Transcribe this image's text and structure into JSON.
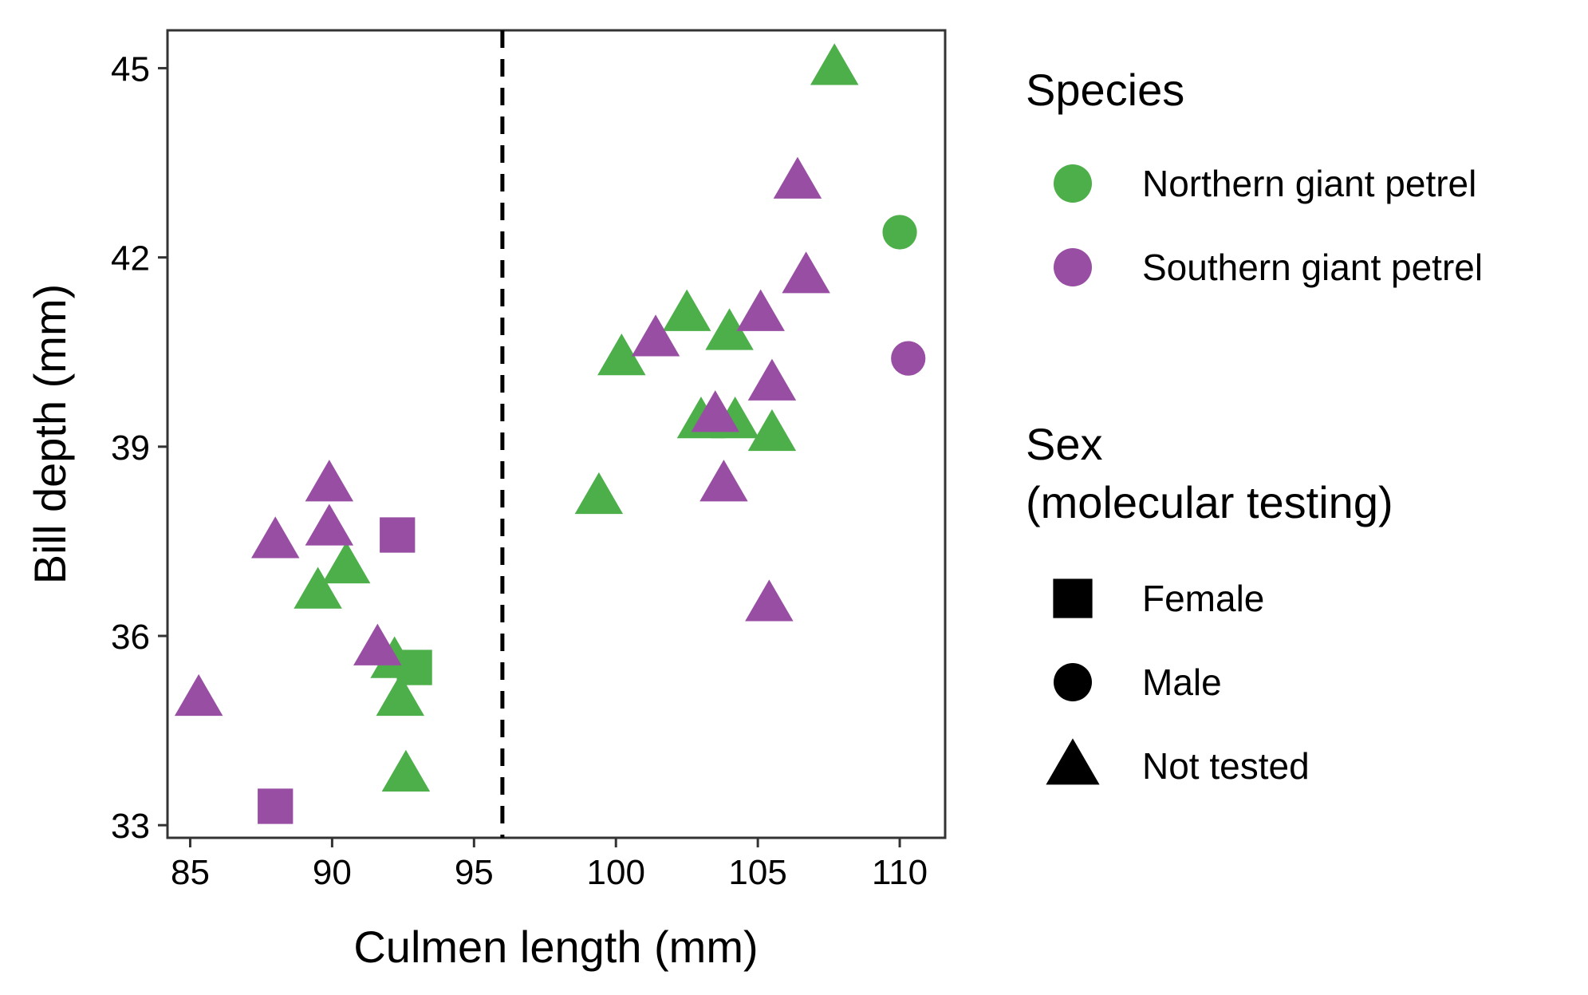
{
  "chart_data": {
    "type": "scatter",
    "title": "",
    "xlabel": "Culmen length (mm)",
    "ylabel": "Bill depth (mm)",
    "xlim": [
      84.2,
      111.6
    ],
    "ylim": [
      32.8,
      45.6
    ],
    "x_ticks": [
      85,
      90,
      95,
      100,
      105,
      110
    ],
    "y_ticks": [
      33,
      36,
      39,
      42,
      45
    ],
    "x_tick_labels": [
      "85",
      "90",
      "95",
      "100",
      "105",
      "110"
    ],
    "y_tick_labels": [
      "33",
      "36",
      "39",
      "42",
      "45"
    ],
    "grid": false,
    "reference_line": {
      "axis": "x",
      "value": 96,
      "style": "dashed",
      "color": "#000000"
    },
    "legend_placement": "right",
    "legends": {
      "species": {
        "title": "Species",
        "entries": [
          {
            "label": "Northern giant petrel",
            "color": "#4DAF4A"
          },
          {
            "label": "Southern giant petrel",
            "color": "#984EA3"
          }
        ]
      },
      "sex": {
        "title_lines": [
          "Sex",
          "(molecular testing)"
        ],
        "entries": [
          {
            "label": "Female",
            "shape": "square"
          },
          {
            "label": "Male",
            "shape": "circle"
          },
          {
            "label": "Not tested",
            "shape": "triangle"
          }
        ]
      }
    },
    "series": [
      {
        "name": "Northern giant petrel",
        "color": "#4DAF4A",
        "points": [
          {
            "x": 107.7,
            "y": 45.0,
            "shape": "triangle"
          },
          {
            "x": 110.0,
            "y": 42.4,
            "shape": "circle"
          },
          {
            "x": 102.5,
            "y": 41.1,
            "shape": "triangle"
          },
          {
            "x": 104.0,
            "y": 40.8,
            "shape": "triangle"
          },
          {
            "x": 100.2,
            "y": 40.4,
            "shape": "triangle"
          },
          {
            "x": 103.0,
            "y": 39.4,
            "shape": "triangle"
          },
          {
            "x": 104.2,
            "y": 39.4,
            "shape": "triangle"
          },
          {
            "x": 105.5,
            "y": 39.2,
            "shape": "triangle"
          },
          {
            "x": 99.4,
            "y": 38.2,
            "shape": "triangle"
          },
          {
            "x": 90.5,
            "y": 37.1,
            "shape": "triangle"
          },
          {
            "x": 89.5,
            "y": 36.7,
            "shape": "triangle"
          },
          {
            "x": 92.2,
            "y": 35.6,
            "shape": "triangle"
          },
          {
            "x": 92.9,
            "y": 35.5,
            "shape": "square"
          },
          {
            "x": 92.4,
            "y": 35.0,
            "shape": "triangle"
          },
          {
            "x": 92.6,
            "y": 33.8,
            "shape": "triangle"
          }
        ]
      },
      {
        "name": "Southern giant petrel",
        "color": "#984EA3",
        "points": [
          {
            "x": 106.4,
            "y": 43.2,
            "shape": "triangle"
          },
          {
            "x": 106.7,
            "y": 41.7,
            "shape": "triangle"
          },
          {
            "x": 105.1,
            "y": 41.1,
            "shape": "triangle"
          },
          {
            "x": 101.4,
            "y": 40.7,
            "shape": "triangle"
          },
          {
            "x": 110.3,
            "y": 40.4,
            "shape": "circle"
          },
          {
            "x": 105.5,
            "y": 40.0,
            "shape": "triangle"
          },
          {
            "x": 103.5,
            "y": 39.5,
            "shape": "triangle"
          },
          {
            "x": 103.8,
            "y": 38.4,
            "shape": "triangle"
          },
          {
            "x": 105.4,
            "y": 36.5,
            "shape": "triangle"
          },
          {
            "x": 89.9,
            "y": 38.4,
            "shape": "triangle"
          },
          {
            "x": 89.9,
            "y": 37.7,
            "shape": "triangle"
          },
          {
            "x": 88.0,
            "y": 37.5,
            "shape": "triangle"
          },
          {
            "x": 92.3,
            "y": 37.6,
            "shape": "square"
          },
          {
            "x": 91.6,
            "y": 35.8,
            "shape": "triangle"
          },
          {
            "x": 85.3,
            "y": 35.0,
            "shape": "triangle"
          },
          {
            "x": 88.0,
            "y": 33.3,
            "shape": "square"
          }
        ]
      }
    ]
  }
}
